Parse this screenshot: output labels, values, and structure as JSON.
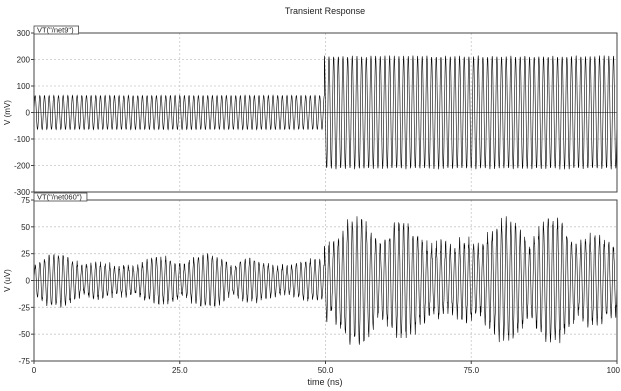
{
  "chart_data": {
    "type": "line",
    "title": "Transient Response",
    "xlabel": "time (ns)",
    "xlim": [
      0,
      100
    ],
    "x_ticks": [
      0,
      25.0,
      50.0,
      75.0,
      100
    ],
    "x_tick_labels": [
      "0",
      "25.0",
      "50.0",
      "75.0",
      "100"
    ],
    "grid": true,
    "panels": [
      {
        "name": "VT(\"/net9\")",
        "ylabel": "V (mV)",
        "ylim": [
          -300,
          300
        ],
        "y_ticks": [
          300,
          200,
          100,
          0,
          -100,
          -200,
          -300
        ],
        "y_tick_labels": [
          "300",
          "200",
          "100",
          "0",
          "-100",
          "-200",
          "-300"
        ],
        "color": "#000000",
        "segments": [
          {
            "t_start": 0,
            "t_end": 49.8,
            "amplitude": 65,
            "kind": "steady"
          },
          {
            "t_start": 49.8,
            "t_end": 100,
            "amplitude": 215,
            "kind": "steady"
          }
        ]
      },
      {
        "name": "VT(\"/net060\")",
        "ylabel": "V (uV)",
        "ylim": [
          -75,
          75
        ],
        "y_ticks": [
          75,
          50,
          25,
          0,
          -25,
          -50,
          -75
        ],
        "y_tick_labels": [
          "75",
          "50",
          "25",
          "0",
          "-25",
          "-50",
          "-75"
        ],
        "color": "#000000",
        "segments": [
          {
            "t_start": 0,
            "t_end": 49.8,
            "amplitude": 22,
            "kind": "noisy"
          },
          {
            "t_start": 49.8,
            "t_end": 100,
            "amplitude": 52,
            "kind": "noisy"
          }
        ]
      }
    ]
  }
}
